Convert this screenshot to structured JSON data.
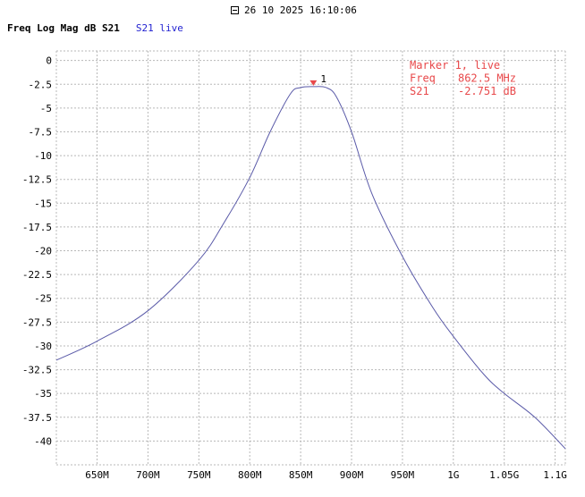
{
  "header": {
    "timestamp": "26 10 2025 16:10:06",
    "chart_title": "Freq Log Mag dB S21",
    "legend_label": "S21 live"
  },
  "colors": {
    "trace": "#5a5aa8",
    "marker": "#e8484a",
    "grid": "#b8b8b8",
    "legend_text": "#1f1fd0"
  },
  "marker": {
    "label": "1",
    "readout": [
      [
        "Marker 1, live",
        ""
      ],
      [
        "Freq",
        "862.5 MHz"
      ],
      [
        "S21",
        "-2.751 dB"
      ]
    ]
  },
  "chart_data": {
    "type": "line",
    "title": "Freq Log Mag dB S21",
    "xlabel": "",
    "ylabel": "",
    "xlim": [
      610,
      1110
    ],
    "ylim": [
      -42.5,
      1
    ],
    "x_units": "MHz",
    "grid": true,
    "x_ticks": [
      {
        "value": 650,
        "label": "650M"
      },
      {
        "value": 700,
        "label": "700M"
      },
      {
        "value": 750,
        "label": "750M"
      },
      {
        "value": 800,
        "label": "800M"
      },
      {
        "value": 850,
        "label": "850M"
      },
      {
        "value": 900,
        "label": "900M"
      },
      {
        "value": 950,
        "label": "950M"
      },
      {
        "value": 1000,
        "label": "1G"
      },
      {
        "value": 1050,
        "label": "1.05G"
      },
      {
        "value": 1100,
        "label": "1.1G"
      }
    ],
    "y_ticks": [
      0,
      -2.5,
      -5,
      -7.5,
      -10,
      -12.5,
      -15,
      -17.5,
      -20,
      -22.5,
      -25,
      -27.5,
      -30,
      -32.5,
      -35,
      -37.5,
      -40
    ],
    "series": [
      {
        "name": "S21 live",
        "x": [
          610,
          650,
          700,
          750,
          775,
          800,
          820,
          840,
          850,
          862.5,
          875,
          885,
          900,
          920,
          950,
          980,
          1000,
          1030,
          1050,
          1080,
          1110
        ],
        "y": [
          -31.5,
          -29.5,
          -26.3,
          -21.0,
          -17.0,
          -12.3,
          -7.5,
          -3.5,
          -2.85,
          -2.751,
          -2.85,
          -3.8,
          -7.5,
          -14.0,
          -20.6,
          -26.0,
          -29.0,
          -33.0,
          -35.0,
          -37.5,
          -40.8
        ]
      }
    ],
    "marker": {
      "x": 862.5,
      "y": -2.751,
      "label": "1"
    }
  }
}
